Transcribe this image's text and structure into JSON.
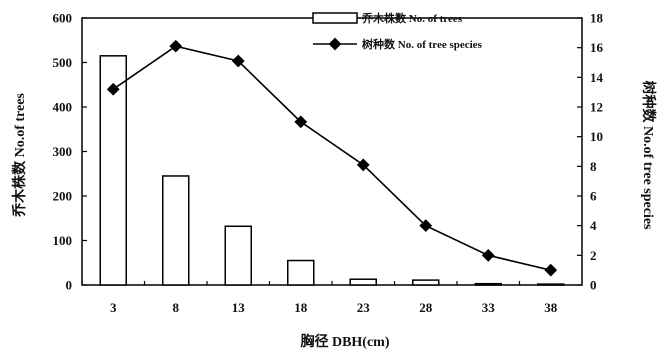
{
  "chart_data": {
    "type": "bar+line",
    "categories": [
      "3",
      "8",
      "13",
      "18",
      "23",
      "28",
      "33",
      "38"
    ],
    "xlabel": "胸径 DBH(cm)",
    "ylabel_left": "乔木株数 No.of trees",
    "ylabel_right": "树种数 No.of tree species",
    "ylim_left": [
      0,
      600
    ],
    "yticks_left": [
      "0",
      "100",
      "200",
      "300",
      "400",
      "500",
      "600"
    ],
    "ylim_right": [
      0,
      18
    ],
    "yticks_right": [
      "0",
      "2",
      "4",
      "6",
      "8",
      "10",
      "12",
      "14",
      "16",
      "18"
    ],
    "series": [
      {
        "name": "乔木株数 No. of trees",
        "type": "bar",
        "axis": "left",
        "values": [
          515,
          245,
          132,
          55,
          13,
          11,
          3,
          2
        ]
      },
      {
        "name": "树种数 No. of tree species",
        "type": "line",
        "axis": "right",
        "values": [
          13.2,
          16.1,
          15.1,
          11.0,
          8.1,
          4.0,
          2.0,
          1.0
        ]
      }
    ],
    "legend_position": "top-center",
    "grid": false,
    "colors": {
      "bar_fill": "#ffffff",
      "stroke": "#000000"
    }
  }
}
